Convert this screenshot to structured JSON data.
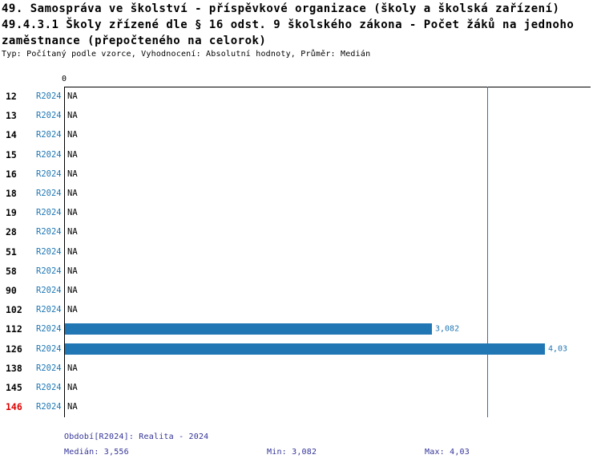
{
  "header": {
    "title_line1": "49. Samospráva ve školství - příspěvkové organizace (školy a školská zařízení)",
    "title_line2": "49.4.3.1 Školy zřízené dle § 16 odst. 9 školského zákona - Počet žáků na jednoho",
    "title_line3": "zaměstnance (přepočteného na celorok)",
    "subtitle": "Typ: Počítaný podle vzorce, Vyhodnocení: Absolutní hodnoty, Průměr: Medián"
  },
  "chart_data": {
    "type": "bar",
    "orientation": "horizontal",
    "title": "49.4.3.1 Školy zřízené dle § 16 odst. 9 školského zákona - Počet žáků na jednoho zaměstnance (přepočteného na celorok)",
    "x_axis": {
      "min": 0,
      "ticks": [
        "0"
      ],
      "approx_max": 4.4
    },
    "series_name": "R2024",
    "categories": [
      "12",
      "13",
      "14",
      "15",
      "16",
      "18",
      "19",
      "28",
      "51",
      "58",
      "90",
      "102",
      "112",
      "126",
      "138",
      "145",
      "146"
    ],
    "values": [
      null,
      null,
      null,
      null,
      null,
      null,
      null,
      null,
      null,
      null,
      null,
      null,
      3.082,
      4.03,
      null,
      null,
      null
    ],
    "rows": [
      {
        "category": "12",
        "period": "R2024",
        "value": null,
        "value_label": "NA",
        "highlight": false
      },
      {
        "category": "13",
        "period": "R2024",
        "value": null,
        "value_label": "NA",
        "highlight": false
      },
      {
        "category": "14",
        "period": "R2024",
        "value": null,
        "value_label": "NA",
        "highlight": false
      },
      {
        "category": "15",
        "period": "R2024",
        "value": null,
        "value_label": "NA",
        "highlight": false
      },
      {
        "category": "16",
        "period": "R2024",
        "value": null,
        "value_label": "NA",
        "highlight": false
      },
      {
        "category": "18",
        "period": "R2024",
        "value": null,
        "value_label": "NA",
        "highlight": false
      },
      {
        "category": "19",
        "period": "R2024",
        "value": null,
        "value_label": "NA",
        "highlight": false
      },
      {
        "category": "28",
        "period": "R2024",
        "value": null,
        "value_label": "NA",
        "highlight": false
      },
      {
        "category": "51",
        "period": "R2024",
        "value": null,
        "value_label": "NA",
        "highlight": false
      },
      {
        "category": "58",
        "period": "R2024",
        "value": null,
        "value_label": "NA",
        "highlight": false
      },
      {
        "category": "90",
        "period": "R2024",
        "value": null,
        "value_label": "NA",
        "highlight": false
      },
      {
        "category": "102",
        "period": "R2024",
        "value": null,
        "value_label": "NA",
        "highlight": false
      },
      {
        "category": "112",
        "period": "R2024",
        "value": 3.082,
        "value_label": "3,082",
        "highlight": false
      },
      {
        "category": "126",
        "period": "R2024",
        "value": 4.03,
        "value_label": "4,03",
        "highlight": false
      },
      {
        "category": "138",
        "period": "R2024",
        "value": null,
        "value_label": "NA",
        "highlight": false
      },
      {
        "category": "145",
        "period": "R2024",
        "value": null,
        "value_label": "NA",
        "highlight": false
      },
      {
        "category": "146",
        "period": "R2024",
        "value": null,
        "value_label": "NA",
        "highlight": true
      }
    ],
    "median": 3.556,
    "min": 3.082,
    "max": 4.03,
    "grid": false,
    "legend": "none"
  },
  "footer": {
    "period": "Období[R2024]: Realita - 2024",
    "median": "Medián: 3,556",
    "min": "Min: 3,082",
    "max": "Max: 4,03"
  },
  "colors": {
    "bar": "#2077b4",
    "period_label": "#1f77b4",
    "value_label": "#1f77b4",
    "highlight_row": "#dd0000",
    "footer_text": "#333399",
    "axis": "#000000",
    "median_line": "#2077b4"
  }
}
